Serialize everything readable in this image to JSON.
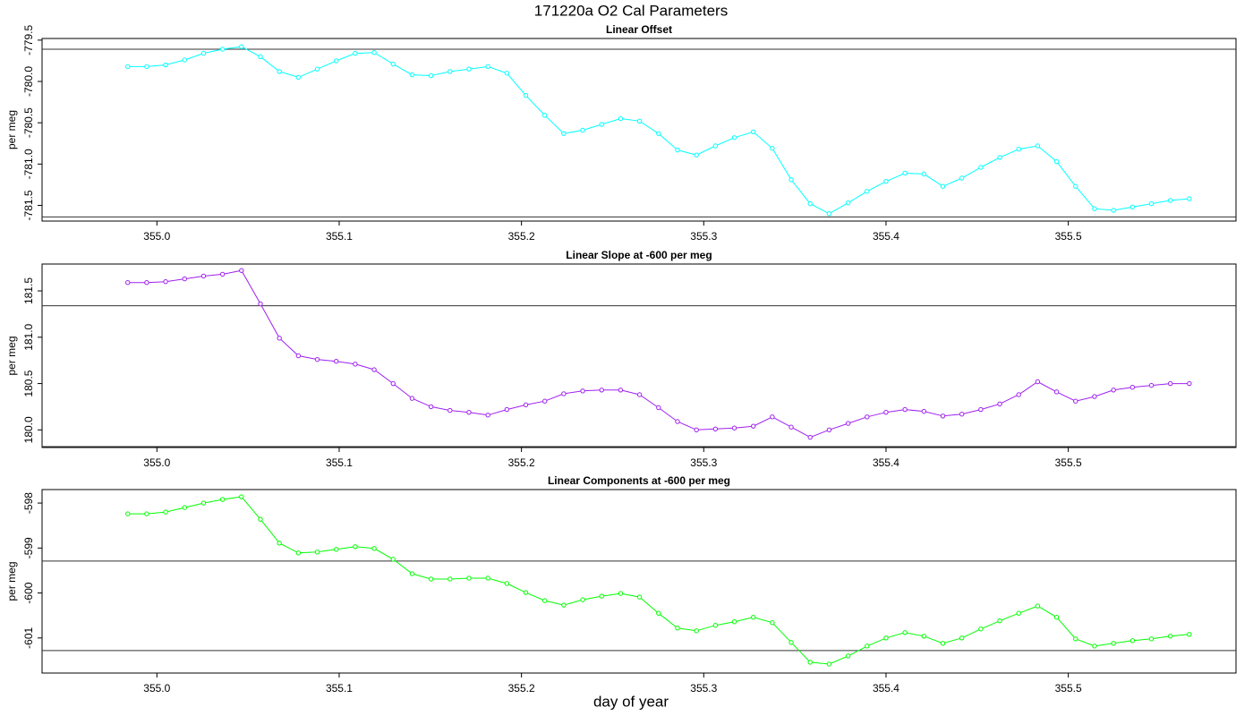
{
  "title": "171220a   O2 Cal Parameters",
  "x_label": "day of year",
  "chart_data": [
    {
      "type": "line",
      "title": "Linear Offset",
      "y_label": "per meg",
      "color": "#00ffff",
      "x": [
        354.984,
        354.9944,
        355.0048,
        355.0152,
        355.0256,
        355.036,
        355.0464,
        355.0568,
        355.0672,
        355.0776,
        355.088,
        355.0984,
        355.1088,
        355.1192,
        355.1296,
        355.14,
        355.1504,
        355.1608,
        355.1712,
        355.1816,
        355.192,
        355.2024,
        355.2128,
        355.2232,
        355.2336,
        355.244,
        355.2544,
        355.2648,
        355.2752,
        355.2856,
        355.296,
        355.3064,
        355.3168,
        355.3272,
        355.3376,
        355.348,
        355.3584,
        355.3688,
        355.3792,
        355.3896,
        355.4,
        355.4104,
        355.4208,
        355.4312,
        355.4416,
        355.452,
        355.4624,
        355.4728,
        355.4832,
        355.4936,
        355.504,
        355.5144,
        355.5248,
        355.5352,
        355.5456,
        355.556,
        355.5664
      ],
      "values": [
        -779.82,
        -779.82,
        -779.8,
        -779.74,
        -779.66,
        -779.61,
        -779.58,
        -779.7,
        -779.88,
        -779.95,
        -779.85,
        -779.75,
        -779.66,
        -779.65,
        -779.79,
        -779.92,
        -779.93,
        -779.88,
        -779.85,
        -779.82,
        -779.9,
        -780.17,
        -780.41,
        -780.63,
        -780.59,
        -780.52,
        -780.45,
        -780.48,
        -780.63,
        -780.83,
        -780.89,
        -780.78,
        -780.68,
        -780.61,
        -780.81,
        -781.19,
        -781.48,
        -781.6,
        -781.47,
        -781.33,
        -781.21,
        -781.11,
        -781.12,
        -781.27,
        -781.17,
        -781.04,
        -780.92,
        -780.82,
        -780.78,
        -780.97,
        -781.27,
        -781.54,
        -781.56,
        -781.52,
        -781.48,
        -781.44,
        -781.42
      ],
      "hlines": [
        -779.61,
        -781.64
      ],
      "xlim": [
        354.937,
        355.592
      ],
      "xticks": [
        {
          "value": 355.0,
          "label": "355.0"
        },
        355.1,
        355.2,
        355.3,
        355.4,
        355.5
      ],
      "ylim": [
        -781.69,
        -779.48
      ],
      "yticks": [
        -779.5,
        {
          "value": -780.0,
          "label": "-780.0"
        },
        -780.5,
        {
          "value": -781.0,
          "label": "-781.0"
        },
        -781.5
      ]
    },
    {
      "type": "line",
      "title": "Linear Slope at -600 per meg",
      "y_label": "per meg",
      "color": "#a020f0",
      "x": [
        354.984,
        354.9944,
        355.0048,
        355.0152,
        355.0256,
        355.036,
        355.0464,
        355.0568,
        355.0672,
        355.0776,
        355.088,
        355.0984,
        355.1088,
        355.1192,
        355.1296,
        355.14,
        355.1504,
        355.1608,
        355.1712,
        355.1816,
        355.192,
        355.2024,
        355.2128,
        355.2232,
        355.2336,
        355.244,
        355.2544,
        355.2648,
        355.2752,
        355.2856,
        355.296,
        355.3064,
        355.3168,
        355.3272,
        355.3376,
        355.348,
        355.3584,
        355.3688,
        355.3792,
        355.3896,
        355.4,
        355.4104,
        355.4208,
        355.4312,
        355.4416,
        355.452,
        355.4624,
        355.4728,
        355.4832,
        355.4936,
        355.504,
        355.5144,
        355.5248,
        355.5352,
        355.5456,
        355.556,
        355.5664
      ],
      "values": [
        181.59,
        181.59,
        181.6,
        181.63,
        181.66,
        181.68,
        181.72,
        181.36,
        180.99,
        180.8,
        180.76,
        180.74,
        180.71,
        180.65,
        180.5,
        180.34,
        180.25,
        180.21,
        180.19,
        180.16,
        180.22,
        180.27,
        180.31,
        180.39,
        180.42,
        180.43,
        180.43,
        180.38,
        180.24,
        180.09,
        180.0,
        180.01,
        180.02,
        180.04,
        180.14,
        180.03,
        179.92,
        180.0,
        180.07,
        180.14,
        180.19,
        180.22,
        180.2,
        180.15,
        180.17,
        180.22,
        180.28,
        180.38,
        180.52,
        180.41,
        180.31,
        180.36,
        180.43,
        180.46,
        180.48,
        180.5,
        180.5
      ],
      "hlines": [
        181.34,
        179.82
      ],
      "xlim": [
        354.937,
        355.592
      ],
      "xticks": [
        {
          "value": 355.0,
          "label": "355.0"
        },
        355.1,
        355.2,
        355.3,
        355.4,
        355.5
      ],
      "ylim": [
        179.81,
        181.79
      ],
      "yticks": [
        {
          "value": 180.0,
          "label": "180.0"
        },
        180.5,
        {
          "value": 181.0,
          "label": "181.0"
        },
        181.5
      ]
    },
    {
      "type": "line",
      "title": "Linear Components at -600 per meg",
      "y_label": "per meg",
      "color": "#00ff00",
      "x": [
        354.984,
        354.9944,
        355.0048,
        355.0152,
        355.0256,
        355.036,
        355.0464,
        355.0568,
        355.0672,
        355.0776,
        355.088,
        355.0984,
        355.1088,
        355.1192,
        355.1296,
        355.14,
        355.1504,
        355.1608,
        355.1712,
        355.1816,
        355.192,
        355.2024,
        355.2128,
        355.2232,
        355.2336,
        355.244,
        355.2544,
        355.2648,
        355.2752,
        355.2856,
        355.296,
        355.3064,
        355.3168,
        355.3272,
        355.3376,
        355.348,
        355.3584,
        355.3688,
        355.3792,
        355.3896,
        355.4,
        355.4104,
        355.4208,
        355.4312,
        355.4416,
        355.452,
        355.4624,
        355.4728,
        355.4832,
        355.4936,
        355.504,
        355.5144,
        355.5248,
        355.5352,
        355.5456,
        355.556,
        355.5664
      ],
      "values": [
        -598.24,
        -598.24,
        -598.2,
        -598.1,
        -598.0,
        -597.92,
        -597.86,
        -598.36,
        -598.89,
        -599.11,
        -599.09,
        -599.03,
        -598.97,
        -599.01,
        -599.25,
        -599.57,
        -599.69,
        -599.69,
        -599.67,
        -599.67,
        -599.79,
        -599.99,
        -600.17,
        -600.27,
        -600.15,
        -600.07,
        -600.01,
        -600.09,
        -600.45,
        -600.78,
        -600.84,
        -600.72,
        -600.64,
        -600.54,
        -600.66,
        -601.1,
        -601.54,
        -601.58,
        -601.4,
        -601.18,
        -601.0,
        -600.88,
        -600.96,
        -601.12,
        -601.0,
        -600.8,
        -600.62,
        -600.45,
        -600.29,
        -600.54,
        -601.02,
        -601.18,
        -601.12,
        -601.06,
        -601.02,
        -600.96,
        -600.92
      ],
      "hlines": [
        -599.29,
        -601.28
      ],
      "xlim": [
        354.937,
        355.592
      ],
      "xticks": [
        {
          "value": 355.0,
          "label": "355.0"
        },
        355.1,
        355.2,
        355.3,
        355.4,
        355.5
      ],
      "ylim": [
        -601.78,
        -597.7
      ],
      "yticks": [
        -598,
        -599,
        -600,
        -601
      ]
    }
  ]
}
